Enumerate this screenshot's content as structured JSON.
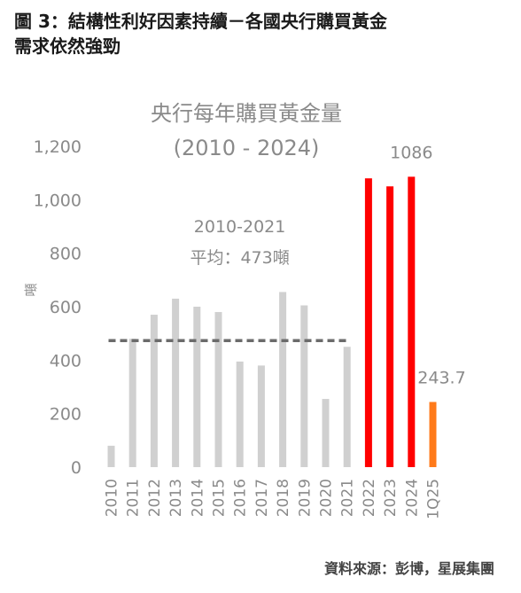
{
  "figure": {
    "title_line1": "圖 3：結構性利好因素持續－各國央行購買黃金",
    "title_line2": "需求依然強勁",
    "source": "資料來源：彭博，星展集團"
  },
  "chart_data": {
    "type": "bar",
    "title": "央行每年購買黃金量",
    "subtitle": "(2010 - 2024)",
    "ylabel": "噸",
    "xlabel": "",
    "ylim": [
      0,
      1200
    ],
    "yticks": [
      0,
      200,
      400,
      600,
      800,
      1000,
      1200
    ],
    "ytick_labels": [
      "0",
      "200",
      "400",
      "600",
      "800",
      "1,000",
      "1,200"
    ],
    "grid": false,
    "categories": [
      "2010",
      "2011",
      "2012",
      "2013",
      "2014",
      "2015",
      "2016",
      "2017",
      "2018",
      "2019",
      "2020",
      "2021",
      "2022",
      "2023",
      "2024",
      "1Q25"
    ],
    "values": [
      80,
      480,
      570,
      630,
      600,
      580,
      395,
      380,
      655,
      605,
      255,
      450,
      1080,
      1050,
      1086,
      243.7
    ],
    "colors": [
      "#d0d0d0",
      "#d0d0d0",
      "#d0d0d0",
      "#d0d0d0",
      "#d0d0d0",
      "#d0d0d0",
      "#d0d0d0",
      "#d0d0d0",
      "#d0d0d0",
      "#d0d0d0",
      "#d0d0d0",
      "#d0d0d0",
      "#ff0000",
      "#ff0000",
      "#ff0000",
      "#ff7a1a"
    ],
    "average": {
      "value": 473,
      "from_category": "2010",
      "to_category": "2021",
      "label_line1": "2010-2021",
      "label_line2": "平均：473噸",
      "color": "#6b6b6b"
    },
    "data_labels": [
      {
        "category": "2024",
        "text": "1086"
      },
      {
        "category": "1Q25",
        "text": "243.7"
      }
    ]
  }
}
